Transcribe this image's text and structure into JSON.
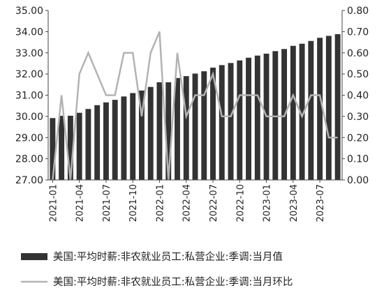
{
  "chart_data": {
    "type": "bar+line",
    "x_labels": [
      "2021-01",
      "2021-02",
      "2021-03",
      "2021-04",
      "2021-05",
      "2021-06",
      "2021-07",
      "2021-08",
      "2021-09",
      "2021-10",
      "2021-11",
      "2021-12",
      "2022-01",
      "2022-02",
      "2022-03",
      "2022-04",
      "2022-05",
      "2022-06",
      "2022-07",
      "2022-08",
      "2022-09",
      "2022-10",
      "2022-11",
      "2022-12",
      "2023-01",
      "2023-02",
      "2023-03",
      "2023-04",
      "2023-05",
      "2023-06",
      "2023-07",
      "2023-08",
      "2023-09"
    ],
    "x_tick_labels_shown": [
      "2021-01",
      "2021-04",
      "2021-07",
      "2021-10",
      "2022-01",
      "2022-04",
      "2022-07",
      "2022-10",
      "2023-01",
      "2023-04",
      "2023-07"
    ],
    "series": [
      {
        "name": "美国:平均时薪:非农就业员工:私营企业:季调:当月值",
        "kind": "bar",
        "axis": "left",
        "color": "#333333",
        "values": [
          29.92,
          30.03,
          30.03,
          30.17,
          30.35,
          30.53,
          30.66,
          30.78,
          30.94,
          31.1,
          31.22,
          31.39,
          31.61,
          31.61,
          31.81,
          31.9,
          32.02,
          32.13,
          32.3,
          32.42,
          32.52,
          32.64,
          32.77,
          32.87,
          32.96,
          33.08,
          33.18,
          33.33,
          33.43,
          33.56,
          33.71,
          33.8,
          33.88
        ]
      },
      {
        "name": "美国:平均时薪:非农就业员工:私营企业:季调:当月环比",
        "kind": "line",
        "axis": "right",
        "color": "#b3b3b3",
        "values": [
          0.0,
          0.4,
          0.0,
          0.5,
          0.6,
          0.5,
          0.4,
          0.4,
          0.6,
          0.6,
          0.3,
          0.6,
          0.7,
          0.0,
          0.6,
          0.3,
          0.4,
          0.4,
          0.5,
          0.3,
          0.3,
          0.4,
          0.4,
          0.4,
          0.3,
          0.3,
          0.3,
          0.4,
          0.3,
          0.4,
          0.4,
          0.2,
          0.2
        ]
      }
    ],
    "y_left": {
      "min": 27.0,
      "max": 35.0,
      "ticks": [
        "27.00",
        "28.00",
        "29.00",
        "30.00",
        "31.00",
        "32.00",
        "33.00",
        "34.00",
        "35.00"
      ]
    },
    "y_right": {
      "min": 0.0,
      "max": 0.8,
      "ticks": [
        "0.00",
        "0.10",
        "0.20",
        "0.30",
        "0.40",
        "0.50",
        "0.60",
        "0.70",
        "0.80"
      ]
    },
    "grid": false,
    "legend_position": "bottom"
  }
}
